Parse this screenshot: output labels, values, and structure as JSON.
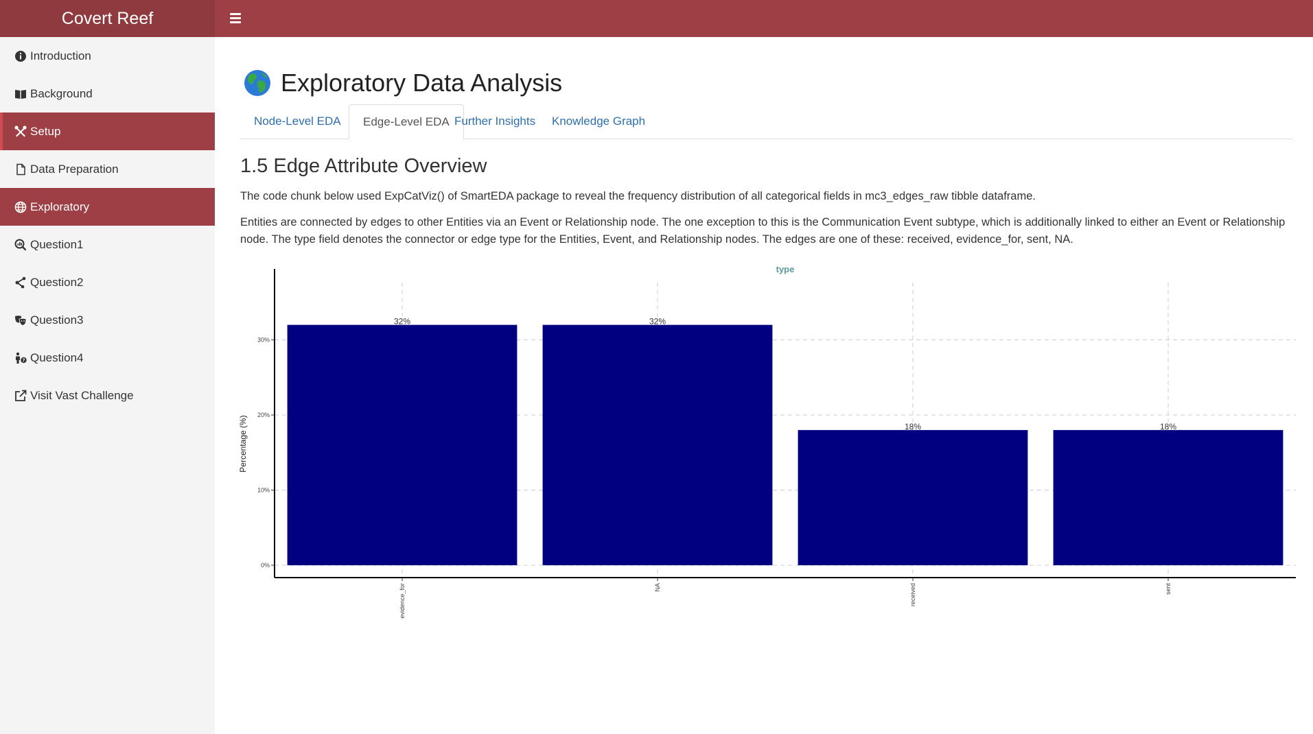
{
  "app": {
    "title": "Covert Reef"
  },
  "header": {
    "menu_icon": "hamburger-icon"
  },
  "sidebar": {
    "items": [
      {
        "label": "Introduction",
        "icon": "info-circle-icon"
      },
      {
        "label": "Background",
        "icon": "book-open-icon"
      },
      {
        "label": "Setup",
        "icon": "tools-icon"
      },
      {
        "label": "Data Preparation",
        "icon": "file-icon"
      },
      {
        "label": "Exploratory",
        "icon": "globe-icon"
      },
      {
        "label": "Question1",
        "icon": "magnifier-chart-icon"
      },
      {
        "label": "Question2",
        "icon": "share-nodes-icon"
      },
      {
        "label": "Question3",
        "icon": "masks-icon"
      },
      {
        "label": "Question4",
        "icon": "person-question-icon"
      },
      {
        "label": "Visit Vast Challenge",
        "icon": "external-link-icon"
      }
    ]
  },
  "main": {
    "title": "Exploratory Data Analysis",
    "title_icon": "earth-globe-icon",
    "tabs": [
      {
        "label": "Node-Level EDA"
      },
      {
        "label": "Edge-Level EDA"
      },
      {
        "label": "Further Insights"
      },
      {
        "label": "Knowledge Graph"
      }
    ],
    "active_tab": "Edge-Level EDA",
    "section_title": "1.5 Edge Attribute Overview",
    "paragraphs": [
      "The code chunk below used ExpCatViz() of SmartEDA package to reveal the frequency distribution of all categorical fields in mc3_edges_raw tibble dataframe.",
      "Entities are connected by edges to other Entities via an Event or Relationship node. The one exception to this is the Communication Event subtype, which is additionally linked to either an Event or Relationship node. The type field denotes the connector or edge type for the Entities, Event, and Relationship nodes. The edges are one of these: received, evidence_for, sent, NA."
    ]
  },
  "colors": {
    "brand": "#8f3a3e",
    "topbar": "#9d3f44",
    "active_item": "#9d3f44",
    "bar": "#000080",
    "title_teal": "#5b9aa0",
    "link": "#2f6fad"
  },
  "chart_data": {
    "type": "bar",
    "title": "type",
    "xlabel": "",
    "ylabel": "Percentage (%)",
    "categories": [
      "evidence_for",
      "NA",
      "received",
      "sent"
    ],
    "values": [
      32,
      32,
      18,
      18
    ],
    "data_labels": [
      "32%",
      "32%",
      "18%",
      "18%"
    ],
    "yticks": [
      0,
      10,
      20,
      30
    ],
    "ytick_labels": [
      "0%",
      "10%",
      "20%",
      "30%"
    ],
    "ylim": [
      0,
      35
    ],
    "grid": true,
    "grid_style": "dashed",
    "legend": "none"
  }
}
